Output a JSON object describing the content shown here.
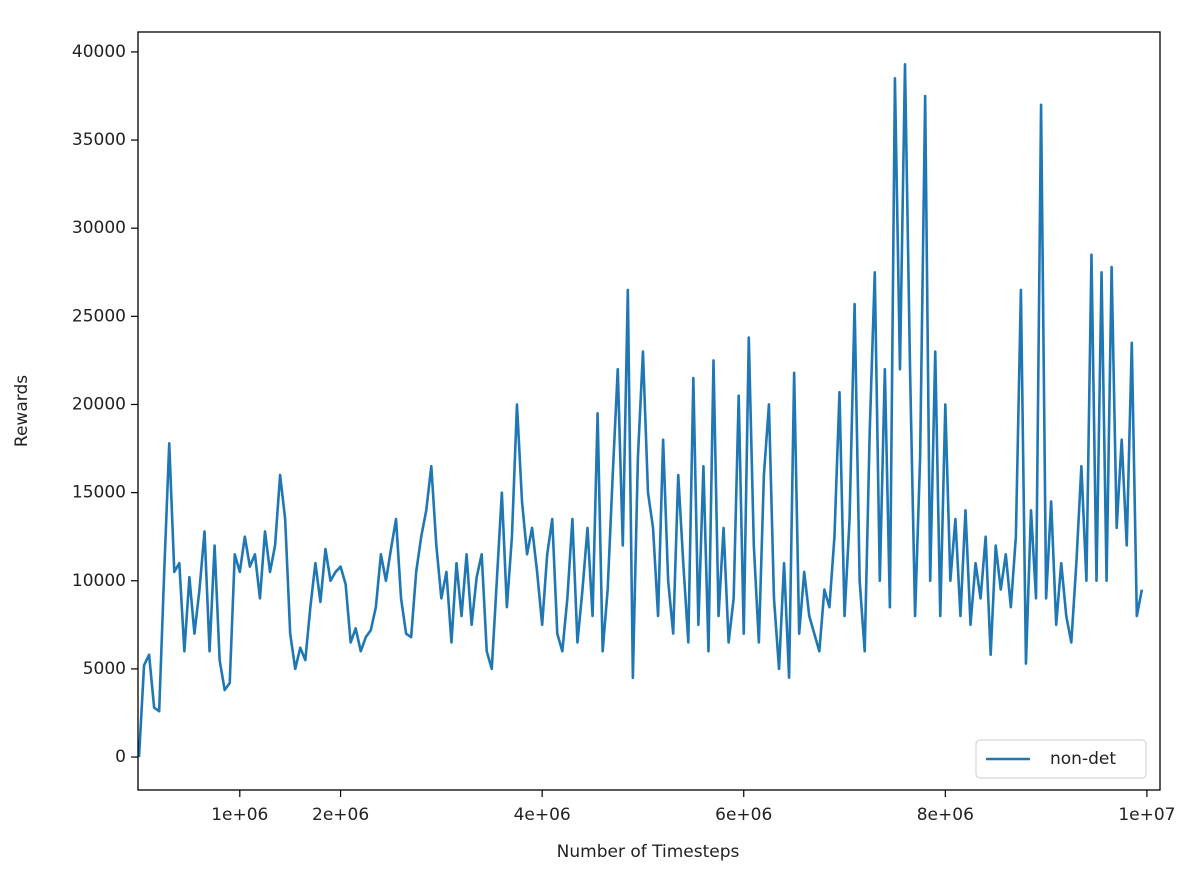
{
  "chart_data": {
    "type": "line",
    "xlabel": "Number of Timesteps",
    "ylabel": "Rewards",
    "x": [
      0,
      50000,
      100000,
      150000,
      200000,
      250000,
      300000,
      350000,
      400000,
      450000,
      500000,
      550000,
      600000,
      650000,
      700000,
      750000,
      800000,
      850000,
      900000,
      950000,
      1000000,
      1050000,
      1100000,
      1150000,
      1200000,
      1250000,
      1300000,
      1350000,
      1400000,
      1450000,
      1500000,
      1550000,
      1600000,
      1650000,
      1700000,
      1750000,
      1800000,
      1850000,
      1900000,
      1950000,
      2000000,
      2050000,
      2100000,
      2150000,
      2200000,
      2250000,
      2300000,
      2350000,
      2400000,
      2450000,
      2500000,
      2550000,
      2600000,
      2650000,
      2700000,
      2750000,
      2800000,
      2850000,
      2900000,
      2950000,
      3000000,
      3050000,
      3100000,
      3150000,
      3200000,
      3250000,
      3300000,
      3350000,
      3400000,
      3450000,
      3500000,
      3550000,
      3600000,
      3650000,
      3700000,
      3750000,
      3800000,
      3850000,
      3900000,
      3950000,
      4000000,
      4050000,
      4100000,
      4150000,
      4200000,
      4250000,
      4300000,
      4350000,
      4400000,
      4450000,
      4500000,
      4550000,
      4600000,
      4650000,
      4700000,
      4750000,
      4800000,
      4850000,
      4900000,
      4950000,
      5000000,
      5050000,
      5100000,
      5150000,
      5200000,
      5250000,
      5300000,
      5350000,
      5400000,
      5450000,
      5500000,
      5550000,
      5600000,
      5650000,
      5700000,
      5750000,
      5800000,
      5850000,
      5900000,
      5950000,
      6000000,
      6050000,
      6100000,
      6150000,
      6200000,
      6250000,
      6300000,
      6350000,
      6400000,
      6450000,
      6500000,
      6550000,
      6600000,
      6650000,
      6700000,
      6750000,
      6800000,
      6850000,
      6900000,
      6950000,
      7000000,
      7050000,
      7100000,
      7150000,
      7200000,
      7250000,
      7300000,
      7350000,
      7400000,
      7450000,
      7500000,
      7550000,
      7600000,
      7650000,
      7700000,
      7750000,
      7800000,
      7850000,
      7900000,
      7950000,
      8000000,
      8050000,
      8100000,
      8150000,
      8200000,
      8250000,
      8300000,
      8350000,
      8400000,
      8450000,
      8500000,
      8550000,
      8600000,
      8650000,
      8700000,
      8750000,
      8800000,
      8850000,
      8900000,
      8950000,
      9000000,
      9050000,
      9100000,
      9150000,
      9200000,
      9250000,
      9300000,
      9350000,
      9400000,
      9450000,
      9500000,
      9550000,
      9600000,
      9650000,
      9700000,
      9750000,
      9800000,
      9850000,
      9900000,
      9950000
    ],
    "series": [
      {
        "name": "non-det",
        "color": "#1f77b4",
        "values": [
          0,
          5200,
          5800,
          2800,
          2600,
          10500,
          17800,
          10500,
          11000,
          6000,
          10200,
          7000,
          9500,
          12800,
          6000,
          12000,
          5500,
          3800,
          4200,
          11500,
          10500,
          12500,
          10800,
          11500,
          9000,
          12800,
          10500,
          12000,
          16000,
          13500,
          7000,
          5000,
          6200,
          5500,
          8500,
          11000,
          8800,
          11800,
          10000,
          10500,
          10800,
          9800,
          6500,
          7300,
          6000,
          6800,
          7200,
          8500,
          11500,
          10000,
          11800,
          13500,
          9000,
          7000,
          6800,
          10500,
          12500,
          14000,
          16500,
          12000,
          9000,
          10500,
          6500,
          11000,
          8000,
          11500,
          7500,
          10200,
          11500,
          6000,
          5000,
          10000,
          15000,
          8500,
          12500,
          20000,
          14500,
          11500,
          13000,
          10500,
          7500,
          11500,
          13500,
          7000,
          6000,
          9000,
          13500,
          6500,
          9500,
          13000,
          8000,
          19500,
          6000,
          9500,
          16000,
          22000,
          12000,
          26500,
          4500,
          17000,
          23000,
          15000,
          13000,
          8000,
          18000,
          10000,
          7000,
          16000,
          11000,
          6500,
          21500,
          7500,
          16500,
          6000,
          22500,
          8000,
          13000,
          6500,
          9000,
          20500,
          7000,
          23800,
          12000,
          6500,
          16000,
          20000,
          9000,
          5000,
          11000,
          4500,
          21800,
          7000,
          10500,
          8000,
          7000,
          6000,
          9500,
          8500,
          12500,
          20700,
          8000,
          13500,
          25700,
          10000,
          6000,
          18500,
          27500,
          10000,
          22000,
          8500,
          38500,
          22000,
          39300,
          22000,
          8000,
          17000,
          37500,
          10000,
          23000,
          8000,
          20000,
          10000,
          13500,
          8000,
          14000,
          7500,
          11000,
          9000,
          12500,
          5800,
          12000,
          9500,
          11500,
          8500,
          12500,
          26500,
          5300,
          14000,
          9000,
          37000,
          9000,
          14500,
          7500,
          11000,
          8000,
          6500,
          11000,
          16500,
          10000,
          28500,
          10000,
          27500,
          10000,
          27800,
          13000,
          18000,
          12000,
          23500,
          8000,
          9500
        ]
      }
    ],
    "xlim": [
      -10000,
      10130000
    ],
    "xticks": [
      {
        "value": 1000000,
        "label": "1e+06"
      },
      {
        "value": 2000000,
        "label": "2e+06"
      },
      {
        "value": 4000000,
        "label": "4e+06"
      },
      {
        "value": 6000000,
        "label": "6e+06"
      },
      {
        "value": 8000000,
        "label": "8e+06"
      },
      {
        "value": 10000000,
        "label": "1e+07"
      }
    ],
    "ylim": [
      -1870,
      41130
    ],
    "yticks": [
      0,
      5000,
      10000,
      15000,
      20000,
      25000,
      30000,
      35000,
      40000
    ],
    "grid": false,
    "legend": "lower right"
  }
}
